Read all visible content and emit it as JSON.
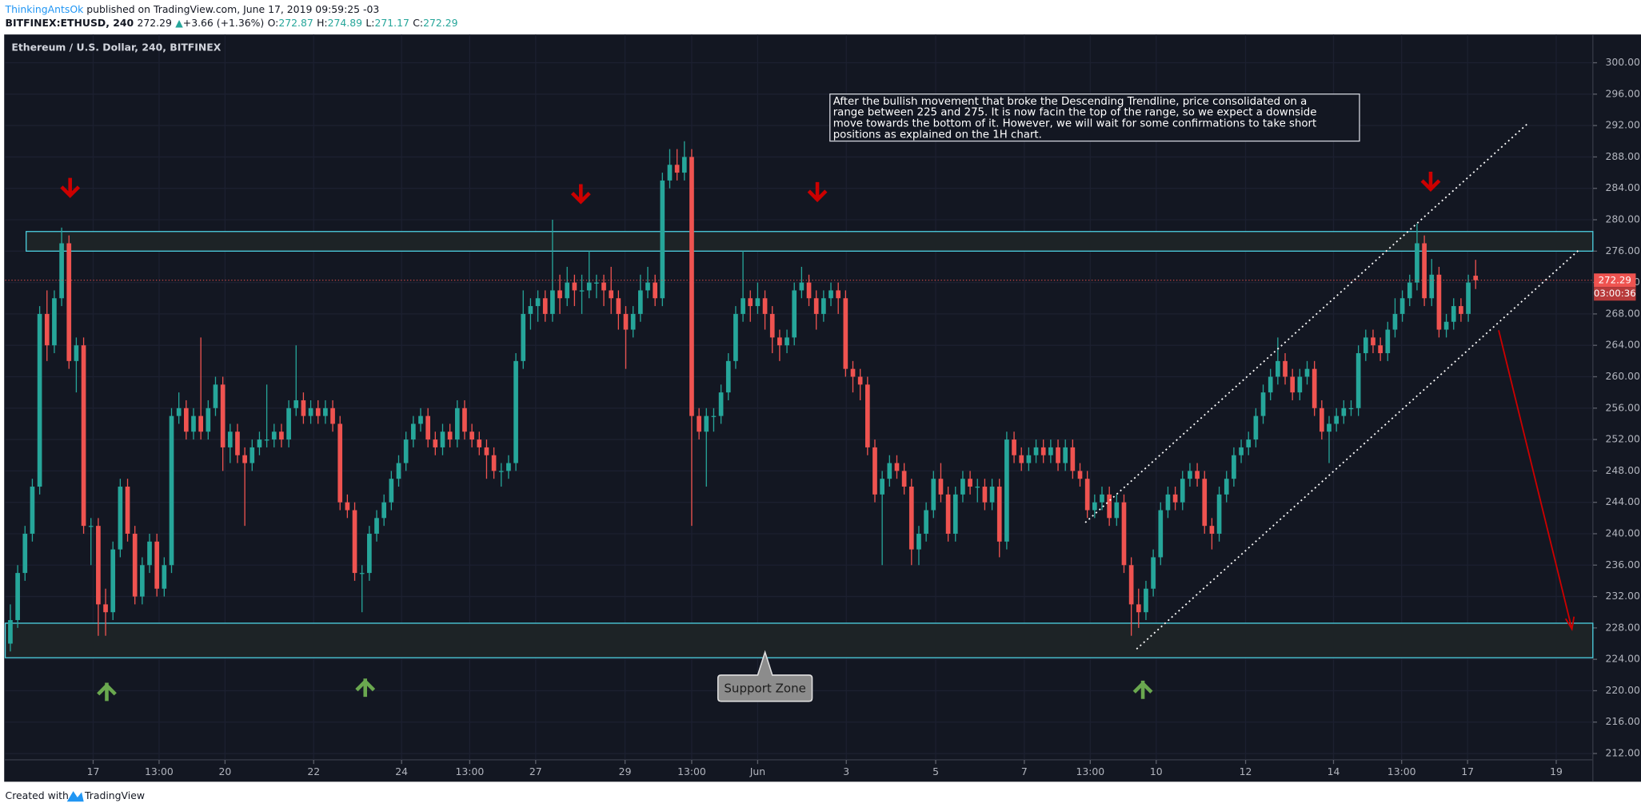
{
  "header": {
    "author": "ThinkingAntsOk",
    "published": " published on TradingView.com, June 17, 2019 09:59:25 -03",
    "symbol": "BITFINEX:ETHUSD, 240",
    "change_arrow": "▲",
    "change": "+3.66 (+1.36%)",
    "ohlc_labels": [
      "O:",
      "H:",
      "L:",
      "C:"
    ]
  },
  "footer": {
    "created_with": "Created with",
    "brand": "TradingView"
  },
  "chart_data": {
    "type": "candlestick",
    "title": "Ethereum / U.S. Dollar, 240, BITFINEX",
    "up_color": "#26a69a",
    "down_color": "#ef5350",
    "grid": true,
    "countdown": "03:00:36",
    "annotation_lines": [
      "After the bullish movement that broke the Descending Trendline, price consolidated on a",
      "range between 225 and 275. It is now facin the top of the range, so we expect a downside",
      "move towards the bottom of it. However, we will wait for some confirmations to take short",
      "positions as explained on the 1H chart."
    ],
    "callout": "Support Zone",
    "resistance_zone": [
      276,
      278.5
    ],
    "support_zone": [
      224.2,
      228.6
    ],
    "ylim": [
      211.2,
      303.6
    ],
    "yticks": [
      {
        "value": 212,
        "label": "212.00"
      },
      {
        "value": 216,
        "label": "216.00"
      },
      {
        "value": 220,
        "label": "220.00"
      },
      {
        "value": 224,
        "label": "224.00"
      },
      {
        "value": 228,
        "label": "228.00"
      },
      {
        "value": 232,
        "label": "232.00"
      },
      {
        "value": 236,
        "label": "236.00"
      },
      {
        "value": 240,
        "label": "240.00"
      },
      {
        "value": 244,
        "label": "244.00"
      },
      {
        "value": 248,
        "label": "248.00"
      },
      {
        "value": 252,
        "label": "252.00"
      },
      {
        "value": 256,
        "label": "256.00"
      },
      {
        "value": 260,
        "label": "260.00"
      },
      {
        "value": 264,
        "label": "264.00"
      },
      {
        "value": 268,
        "label": "268.00"
      },
      {
        "value": 272,
        "label": "272.00"
      },
      {
        "value": 276,
        "label": "276.00"
      },
      {
        "value": 280,
        "label": "280.00"
      },
      {
        "value": 284,
        "label": "284.00"
      },
      {
        "value": 288,
        "label": "288.00"
      },
      {
        "value": 292,
        "label": "292.00"
      },
      {
        "value": 296,
        "label": "296.00"
      },
      {
        "value": 300,
        "label": "300.00"
      }
    ],
    "xlim": [
      -0.7,
      216
    ],
    "xticks": [
      {
        "value": 11.3,
        "label": "17"
      },
      {
        "value": 20.3,
        "label": "13:00"
      },
      {
        "value": 29.3,
        "label": "20"
      },
      {
        "value": 41.4,
        "label": "22"
      },
      {
        "value": 53.4,
        "label": "24"
      },
      {
        "value": 62.7,
        "label": "13:00"
      },
      {
        "value": 71.7,
        "label": "27"
      },
      {
        "value": 83.9,
        "label": "29"
      },
      {
        "value": 93,
        "label": "13:00"
      },
      {
        "value": 102,
        "label": "Jun"
      },
      {
        "value": 114.1,
        "label": "3"
      },
      {
        "value": 126.3,
        "label": "5"
      },
      {
        "value": 138.4,
        "label": "7"
      },
      {
        "value": 147.4,
        "label": "13:00"
      },
      {
        "value": 156.4,
        "label": "10"
      },
      {
        "value": 168.6,
        "label": "12"
      },
      {
        "value": 180.6,
        "label": "14"
      },
      {
        "value": 189.9,
        "label": "13:00"
      },
      {
        "value": 198.9,
        "label": "17"
      },
      {
        "value": 211,
        "label": "19"
      }
    ],
    "candles": [
      [
        226,
        231,
        225,
        229
      ],
      [
        229,
        236,
        228,
        235
      ],
      [
        235,
        241,
        234,
        240
      ],
      [
        240,
        247,
        239,
        246
      ],
      [
        246,
        269,
        245,
        268
      ],
      [
        268,
        271,
        262,
        264
      ],
      [
        264,
        271,
        263,
        270
      ],
      [
        270,
        279,
        269,
        277
      ],
      [
        277,
        278,
        261,
        262
      ],
      [
        262,
        265,
        258,
        264
      ],
      [
        264,
        265,
        240,
        241
      ],
      [
        241,
        242,
        236,
        241
      ],
      [
        241,
        242,
        227,
        231
      ],
      [
        231,
        233,
        227,
        230
      ],
      [
        230,
        239,
        229,
        238
      ],
      [
        238,
        247,
        237,
        246
      ],
      [
        246,
        247,
        239,
        240
      ],
      [
        240,
        241,
        231,
        232
      ],
      [
        232,
        237,
        231,
        236
      ],
      [
        236,
        240,
        235,
        239
      ],
      [
        239,
        240,
        232,
        233
      ],
      [
        233,
        237,
        232,
        236
      ],
      [
        236,
        256,
        235,
        255
      ],
      [
        255,
        258,
        254,
        256
      ],
      [
        256,
        257,
        252,
        253
      ],
      [
        253,
        256,
        252,
        255
      ],
      [
        255,
        265,
        252,
        253
      ],
      [
        253,
        257,
        252,
        256
      ],
      [
        256,
        260,
        255,
        259
      ],
      [
        259,
        260,
        248,
        251
      ],
      [
        251,
        254,
        249,
        253
      ],
      [
        253,
        254,
        249,
        250
      ],
      [
        250,
        251,
        241,
        249
      ],
      [
        249,
        252,
        248,
        251
      ],
      [
        251,
        253,
        250,
        252
      ],
      [
        252,
        259,
        251,
        252
      ],
      [
        252,
        254,
        251,
        253
      ],
      [
        253,
        254,
        251,
        252
      ],
      [
        252,
        257,
        251,
        256
      ],
      [
        256,
        264,
        255,
        257
      ],
      [
        257,
        258,
        254,
        255
      ],
      [
        255,
        257,
        254,
        256
      ],
      [
        256,
        257,
        254,
        255
      ],
      [
        255,
        257,
        254,
        256
      ],
      [
        256,
        257,
        253,
        254
      ],
      [
        254,
        255,
        243,
        244
      ],
      [
        244,
        245,
        242,
        243
      ],
      [
        243,
        244,
        234,
        235
      ],
      [
        235,
        236,
        230,
        235
      ],
      [
        235,
        241,
        234,
        240
      ],
      [
        240,
        243,
        239,
        242
      ],
      [
        242,
        245,
        241,
        244
      ],
      [
        244,
        248,
        243,
        247
      ],
      [
        247,
        250,
        246,
        249
      ],
      [
        249,
        253,
        248,
        252
      ],
      [
        252,
        255,
        251,
        254
      ],
      [
        254,
        256,
        253,
        255
      ],
      [
        255,
        256,
        251,
        252
      ],
      [
        252,
        253,
        250,
        251
      ],
      [
        251,
        254,
        250,
        253
      ],
      [
        253,
        254,
        251,
        252
      ],
      [
        252,
        257,
        251,
        256
      ],
      [
        256,
        257,
        252,
        253
      ],
      [
        253,
        254,
        251,
        252
      ],
      [
        252,
        253,
        250,
        251
      ],
      [
        251,
        252,
        247,
        250
      ],
      [
        250,
        251,
        247,
        248
      ],
      [
        248,
        249,
        246,
        248
      ],
      [
        248,
        250,
        247,
        249
      ],
      [
        249,
        263,
        248,
        262
      ],
      [
        262,
        271,
        261,
        268
      ],
      [
        268,
        270,
        266,
        269
      ],
      [
        269,
        271,
        267,
        270
      ],
      [
        270,
        271,
        267,
        268
      ],
      [
        268,
        280,
        267,
        271
      ],
      [
        271,
        273,
        268,
        270
      ],
      [
        270,
        274,
        269,
        272
      ],
      [
        272,
        273,
        269,
        271
      ],
      [
        271,
        273,
        268,
        271
      ],
      [
        271,
        276,
        270,
        272
      ],
      [
        272,
        273,
        270,
        272
      ],
      [
        272,
        273,
        269,
        271
      ],
      [
        271,
        274,
        268,
        270
      ],
      [
        270,
        271,
        266,
        268
      ],
      [
        268,
        269,
        261,
        266
      ],
      [
        266,
        269,
        265,
        268
      ],
      [
        268,
        273,
        267,
        271
      ],
      [
        271,
        274,
        270,
        272
      ],
      [
        272,
        273,
        269,
        270
      ],
      [
        270,
        286,
        269,
        285
      ],
      [
        285,
        289,
        284,
        287
      ],
      [
        287,
        289,
        285,
        286
      ],
      [
        286,
        290,
        285,
        288
      ],
      [
        288,
        289,
        241,
        255
      ],
      [
        255,
        256,
        252,
        253
      ],
      [
        253,
        256,
        246,
        255
      ],
      [
        255,
        256,
        253,
        255
      ],
      [
        255,
        259,
        254,
        258
      ],
      [
        258,
        263,
        257,
        262
      ],
      [
        262,
        269,
        261,
        268
      ],
      [
        268,
        276,
        267,
        270
      ],
      [
        270,
        271,
        267,
        269
      ],
      [
        269,
        272,
        268,
        270
      ],
      [
        270,
        271,
        266,
        268
      ],
      [
        268,
        269,
        263,
        265
      ],
      [
        265,
        266,
        262,
        264
      ],
      [
        264,
        266,
        263,
        265
      ],
      [
        265,
        272,
        264,
        271
      ],
      [
        271,
        274,
        270,
        272
      ],
      [
        272,
        273,
        269,
        270
      ],
      [
        270,
        271,
        266,
        268
      ],
      [
        268,
        271,
        267,
        270
      ],
      [
        270,
        272,
        269,
        271
      ],
      [
        271,
        272,
        268,
        270
      ],
      [
        270,
        271,
        260,
        261
      ],
      [
        261,
        262,
        258,
        260
      ],
      [
        260,
        261,
        257,
        259
      ],
      [
        259,
        260,
        250,
        251
      ],
      [
        251,
        252,
        244,
        245
      ],
      [
        245,
        248,
        236,
        247
      ],
      [
        247,
        250,
        246,
        249
      ],
      [
        249,
        250,
        247,
        248
      ],
      [
        248,
        249,
        245,
        246
      ],
      [
        246,
        247,
        236,
        238
      ],
      [
        238,
        241,
        236,
        240
      ],
      [
        240,
        244,
        239,
        243
      ],
      [
        243,
        248,
        242,
        247
      ],
      [
        247,
        249,
        244,
        245
      ],
      [
        245,
        246,
        239,
        240
      ],
      [
        240,
        246,
        239,
        245
      ],
      [
        245,
        248,
        244,
        247
      ],
      [
        247,
        248,
        245,
        246
      ],
      [
        246,
        247,
        244,
        246
      ],
      [
        246,
        247,
        243,
        244
      ],
      [
        244,
        247,
        243,
        246
      ],
      [
        246,
        247,
        237,
        239
      ],
      [
        239,
        253,
        238,
        252
      ],
      [
        252,
        253,
        249,
        250
      ],
      [
        250,
        251,
        248,
        249
      ],
      [
        249,
        251,
        248,
        250
      ],
      [
        250,
        252,
        249,
        251
      ],
      [
        251,
        252,
        249,
        250
      ],
      [
        250,
        252,
        249,
        251
      ],
      [
        251,
        252,
        248,
        249
      ],
      [
        249,
        252,
        248,
        251
      ],
      [
        251,
        252,
        247,
        248
      ],
      [
        248,
        249,
        246,
        247
      ],
      [
        247,
        248,
        242,
        243
      ],
      [
        243,
        245,
        242,
        244
      ],
      [
        244,
        246,
        243,
        245
      ],
      [
        245,
        246,
        241,
        242
      ],
      [
        242,
        245,
        241,
        244
      ],
      [
        244,
        245,
        235,
        236
      ],
      [
        236,
        237,
        227,
        231
      ],
      [
        231,
        233,
        228,
        230
      ],
      [
        230,
        234,
        229,
        233
      ],
      [
        233,
        238,
        232,
        237
      ],
      [
        237,
        244,
        236,
        243
      ],
      [
        243,
        246,
        242,
        245
      ],
      [
        245,
        246,
        243,
        244
      ],
      [
        244,
        248,
        243,
        247
      ],
      [
        247,
        249,
        246,
        248
      ],
      [
        248,
        249,
        246,
        247
      ],
      [
        247,
        248,
        240,
        241
      ],
      [
        241,
        242,
        238,
        240
      ],
      [
        240,
        246,
        239,
        245
      ],
      [
        245,
        248,
        244,
        247
      ],
      [
        247,
        251,
        246,
        250
      ],
      [
        250,
        252,
        249,
        251
      ],
      [
        251,
        253,
        250,
        252
      ],
      [
        252,
        256,
        251,
        255
      ],
      [
        255,
        259,
        254,
        258
      ],
      [
        258,
        261,
        257,
        260
      ],
      [
        260,
        265,
        259,
        262
      ],
      [
        262,
        263,
        259,
        260
      ],
      [
        260,
        261,
        257,
        258
      ],
      [
        258,
        261,
        257,
        260
      ],
      [
        260,
        262,
        259,
        261
      ],
      [
        261,
        262,
        255,
        256
      ],
      [
        256,
        257,
        252,
        253
      ],
      [
        253,
        255,
        249,
        254
      ],
      [
        254,
        256,
        253,
        255
      ],
      [
        255,
        257,
        254,
        256
      ],
      [
        256,
        257,
        255,
        256
      ],
      [
        256,
        264,
        255,
        263
      ],
      [
        263,
        266,
        262,
        265
      ],
      [
        265,
        266,
        263,
        264
      ],
      [
        264,
        265,
        262,
        263
      ],
      [
        263,
        267,
        262,
        266
      ],
      [
        266,
        270,
        265,
        268
      ],
      [
        268,
        271,
        267,
        270
      ],
      [
        270,
        273,
        269,
        272
      ],
      [
        272,
        279.5,
        271,
        277
      ],
      [
        277,
        278,
        269,
        270
      ],
      [
        270,
        275,
        269,
        273
      ],
      [
        273,
        274,
        265,
        266
      ],
      [
        266,
        268,
        265,
        267
      ],
      [
        267,
        270,
        266,
        269
      ],
      [
        269,
        270,
        267,
        268
      ],
      [
        268,
        273,
        267,
        272
      ],
      [
        272.87,
        274.89,
        271.17,
        272.29
      ]
    ]
  }
}
